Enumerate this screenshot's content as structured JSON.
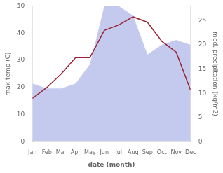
{
  "chart_data": {
    "type": "line",
    "categories": [
      "Jan",
      "Feb",
      "Mar",
      "Apr",
      "May",
      "Jun",
      "Jul",
      "Aug",
      "Sep",
      "Oct",
      "Nov",
      "Dec"
    ],
    "series": [
      {
        "type": "area",
        "axis": "y2",
        "color": "#b0b8e8",
        "values": [
          12,
          11,
          11,
          12,
          16,
          28,
          28,
          26,
          18,
          20,
          21,
          20
        ]
      },
      {
        "type": "line",
        "color": "#9b2335",
        "values": [
          16,
          20,
          25,
          31,
          31,
          41,
          43,
          46,
          44,
          37,
          33,
          19
        ]
      }
    ],
    "xlabel": "date (month)",
    "ylabel": "max temp (C)",
    "y2label": "med. precipitation (kg/m2)",
    "ylim": [
      0,
      50
    ],
    "yticks": [
      0,
      10,
      20,
      30,
      40,
      50
    ],
    "y2lim": [
      0,
      28
    ],
    "y2ticks": [
      0,
      5,
      10,
      15,
      20,
      25
    ],
    "grid": false
  }
}
